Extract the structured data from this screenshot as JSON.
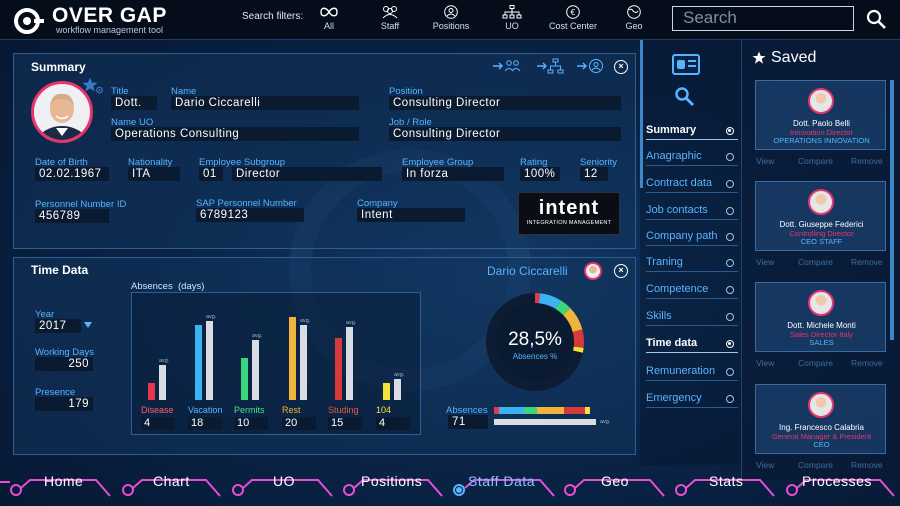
{
  "app": {
    "title": "OVER GAP",
    "subtitle": "workflow management tool"
  },
  "search_filters": {
    "label": "Search filters:",
    "items": [
      {
        "label": "All",
        "icon": "infinity-icon"
      },
      {
        "label": "Staff",
        "icon": "people-icon"
      },
      {
        "label": "Positions",
        "icon": "person-circle-icon"
      },
      {
        "label": "UO",
        "icon": "org-chart-icon"
      },
      {
        "label": "Cost Center",
        "icon": "euro-icon"
      },
      {
        "label": "Geo",
        "icon": "globe-icon"
      }
    ]
  },
  "search": {
    "placeholder": "Search"
  },
  "summary": {
    "title": "Summary",
    "fields": {
      "title_label": "Title",
      "title_value": "Dott.",
      "name_label": "Name",
      "name_value": "Dario Ciccarelli",
      "position_label": "Position",
      "position_value": "Consulting Director",
      "uo_label": "Name UO",
      "uo_value": "Operations Consulting",
      "job_label": "Job / Role",
      "job_value": "Consulting Director",
      "dob_label": "Date of Birth",
      "dob_value": "02.02.1967",
      "nationality_label": "Nationality",
      "nationality_value": "ITA",
      "subgroup_label": "Employee Subgroup",
      "subgroup_code": "01",
      "subgroup_value": "Director",
      "group_label": "Employee Group",
      "group_value": "In forza",
      "rating_label": "Rating",
      "rating_value": "100%",
      "seniority_label": "Seniority",
      "seniority_value": "12",
      "pid_label": "Personnel Number ID",
      "pid_value": "456789",
      "sap_label": "SAP Personnel Number",
      "sap_value": "6789123",
      "company_label": "Company",
      "company_value": "Intent"
    },
    "company_logo": {
      "text": "intent",
      "tagline": "INTEGRATION MANAGEMENT"
    }
  },
  "time_data": {
    "title": "Time Data",
    "person_name": "Dario Ciccarelli",
    "year_label": "Year",
    "year_value": "2017",
    "working_days_label": "Working Days",
    "working_days_value": "250",
    "presence_label": "Presence",
    "presence_value": "179",
    "absences_label": "Absences",
    "absences_unit": "(days)",
    "donut_value": "28,5%",
    "donut_label": "Absences %",
    "absences_bar_label": "Absences",
    "absences_bar_value": "71",
    "avg_label": "avg."
  },
  "chart_data": {
    "type": "bar",
    "title": "Absences",
    "ylabel": "days",
    "categories": [
      "Disease",
      "Vacation",
      "Permits",
      "Rest",
      "Studing",
      "104"
    ],
    "series": [
      {
        "name": "value",
        "values": [
          4,
          18,
          10,
          20,
          15,
          4
        ]
      },
      {
        "name": "avg.",
        "values": [
          8.5,
          19,
          14.5,
          18,
          17.5,
          5
        ]
      }
    ],
    "colors": [
      "#e8364f",
      "#3bb3f0",
      "#3ad67c",
      "#f0b43a",
      "#d63a3a",
      "#f2e23a"
    ],
    "label_colors": [
      "#ff5a6e",
      "#58b4ff",
      "#4ee08a",
      "#f0b43a",
      "#e85a3a",
      "#f2e23a"
    ],
    "ylim": [
      0,
      24
    ]
  },
  "donut_data": {
    "percent": 28.5,
    "segments": [
      {
        "color": "#e8364f",
        "value": 4
      },
      {
        "color": "#3bb3f0",
        "value": 18
      },
      {
        "color": "#3ad67c",
        "value": 10
      },
      {
        "color": "#f0b43a",
        "value": 20
      },
      {
        "color": "#d63a3a",
        "value": 15
      },
      {
        "color": "#f2e23a",
        "value": 4
      }
    ]
  },
  "right_nav": {
    "items": [
      {
        "label": "Summary",
        "active": true
      },
      {
        "label": "Anagraphic",
        "active": false
      },
      {
        "label": "Contract data",
        "active": false
      },
      {
        "label": "Job contacts",
        "active": false
      },
      {
        "label": "Company path",
        "active": false
      },
      {
        "label": "Traning",
        "active": false
      },
      {
        "label": "Competence",
        "active": false
      },
      {
        "label": "Skills",
        "active": false
      },
      {
        "label": "Time data",
        "active": true
      },
      {
        "label": "Remuneration",
        "active": false
      },
      {
        "label": "Emergency",
        "active": false
      }
    ]
  },
  "saved": {
    "title": "Saved",
    "actions": {
      "view": "View",
      "compare": "Compare",
      "remove": "Remove"
    },
    "cards": [
      {
        "name": "Dott. Paolo Belli",
        "role": "Innovation Director",
        "dept": "OPERATIONS INNOVATION"
      },
      {
        "name": "Dott. Giuseppe Federici",
        "role": "Controlling Director",
        "dept": "CEO STAFF"
      },
      {
        "name": "Dott. Michele Monti",
        "role": "Sales Director Italy",
        "dept": "SALES"
      },
      {
        "name": "Ing. Francesco Calabria",
        "role": "General Manager & President",
        "dept": "CEO"
      }
    ]
  },
  "bottom_nav": {
    "items": [
      {
        "label": "Home",
        "active": false
      },
      {
        "label": "Chart",
        "active": false
      },
      {
        "label": "UO",
        "active": false
      },
      {
        "label": "Positions",
        "active": false
      },
      {
        "label": "Staff Data",
        "active": true
      },
      {
        "label": "Geo",
        "active": false
      },
      {
        "label": "Stats",
        "active": false
      },
      {
        "label": "Processes",
        "active": false
      }
    ]
  },
  "colors": {
    "accent": "#58b4ff",
    "highlight": "#e8336e",
    "bg": "#0a2447"
  }
}
